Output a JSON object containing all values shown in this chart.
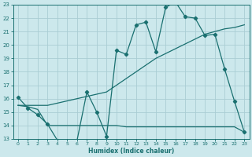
{
  "xlabel": "Humidex (Indice chaleur)",
  "bg_color": "#cce8ec",
  "grid_color": "#aacdd4",
  "line_color": "#1a7070",
  "xlim": [
    -0.5,
    23.5
  ],
  "ylim": [
    13,
    23
  ],
  "yticks": [
    13,
    14,
    15,
    16,
    17,
    18,
    19,
    20,
    21,
    22,
    23
  ],
  "xticks": [
    0,
    1,
    2,
    3,
    4,
    5,
    6,
    7,
    8,
    9,
    10,
    11,
    12,
    13,
    14,
    15,
    16,
    17,
    18,
    19,
    20,
    21,
    22,
    23
  ],
  "curve1_x": [
    0,
    1,
    2,
    3,
    4,
    5,
    6,
    7,
    8,
    9,
    10,
    11,
    12,
    13,
    14,
    15,
    16,
    17,
    18,
    19,
    20,
    21,
    22,
    23
  ],
  "curve1_y": [
    16.1,
    15.3,
    14.8,
    14.1,
    12.9,
    12.8,
    12.9,
    16.5,
    15.0,
    13.2,
    19.6,
    19.3,
    21.5,
    21.7,
    19.5,
    22.8,
    23.2,
    22.1,
    22.0,
    20.7,
    20.8,
    18.2,
    15.8,
    13.5
  ],
  "curve2_x": [
    0,
    3,
    9,
    14,
    19,
    20,
    21,
    22,
    23
  ],
  "curve2_y": [
    15.5,
    15.5,
    16.5,
    19.0,
    20.8,
    21.0,
    21.2,
    21.3,
    21.5
  ],
  "curve3_x": [
    0,
    1,
    2,
    3,
    4,
    5,
    6,
    7,
    8,
    9,
    10,
    11,
    12,
    13,
    14,
    15,
    16,
    17,
    18,
    19,
    20,
    21,
    22,
    23
  ],
  "curve3_y": [
    15.5,
    15.4,
    15.2,
    14.0,
    14.0,
    14.0,
    14.0,
    14.0,
    14.0,
    14.0,
    14.0,
    13.9,
    13.9,
    13.9,
    13.9,
    13.9,
    13.9,
    13.9,
    13.9,
    13.9,
    13.9,
    13.9,
    13.9,
    13.5
  ]
}
